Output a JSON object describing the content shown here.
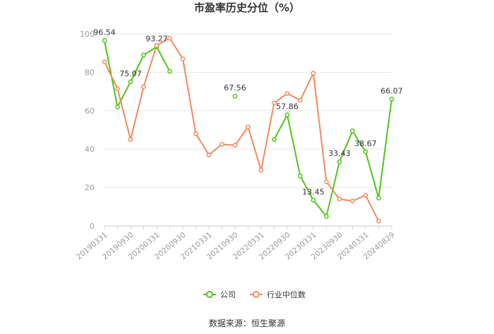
{
  "chart_data": {
    "type": "line",
    "title": "市盈率历史分位（%）",
    "source": "数据来源：恒生聚源",
    "ylim": [
      0,
      100
    ],
    "yticks": [
      0,
      20,
      40,
      60,
      80,
      100
    ],
    "grid": true,
    "legend_position": "bottom",
    "x": [
      "20190331",
      "20190630",
      "20190930",
      "20191231",
      "20200331",
      "20200630",
      "20200930",
      "20201231",
      "20210331",
      "20210630",
      "20210930",
      "20211231",
      "20220331",
      "20220630",
      "20220930",
      "20221231",
      "20230331",
      "20230630",
      "20230930",
      "20231231",
      "20240331",
      "20240630",
      "20240829"
    ],
    "xtick_labels": [
      "20190331",
      "20190930",
      "20200331",
      "20200930",
      "20210331",
      "20210930",
      "20220331",
      "20220930",
      "20230331",
      "20230930",
      "20240331",
      "20240829"
    ],
    "series": [
      {
        "name": "公司",
        "color": "#52c41a",
        "values": [
          96.54,
          62,
          75.07,
          89,
          93.27,
          80.5,
          null,
          null,
          null,
          null,
          67.56,
          null,
          null,
          45,
          57.86,
          26,
          13.45,
          5,
          33.43,
          49.5,
          38.67,
          14.5,
          66.07
        ],
        "labels": {
          "0": "96.54",
          "2": "75.07",
          "4": "93.27",
          "10": "67.56",
          "14": "57.86",
          "16": "13.45",
          "18": "33.43",
          "20": "38.67",
          "22": "66.07"
        }
      },
      {
        "name": "行业中位数",
        "color": "#f08a5d",
        "values": [
          85.5,
          71.5,
          45,
          72.5,
          94,
          97.8,
          87,
          48,
          37,
          42.5,
          42,
          51.5,
          29,
          64,
          69,
          65.5,
          79.5,
          23,
          14,
          13,
          16,
          2.5,
          null
        ]
      }
    ]
  }
}
